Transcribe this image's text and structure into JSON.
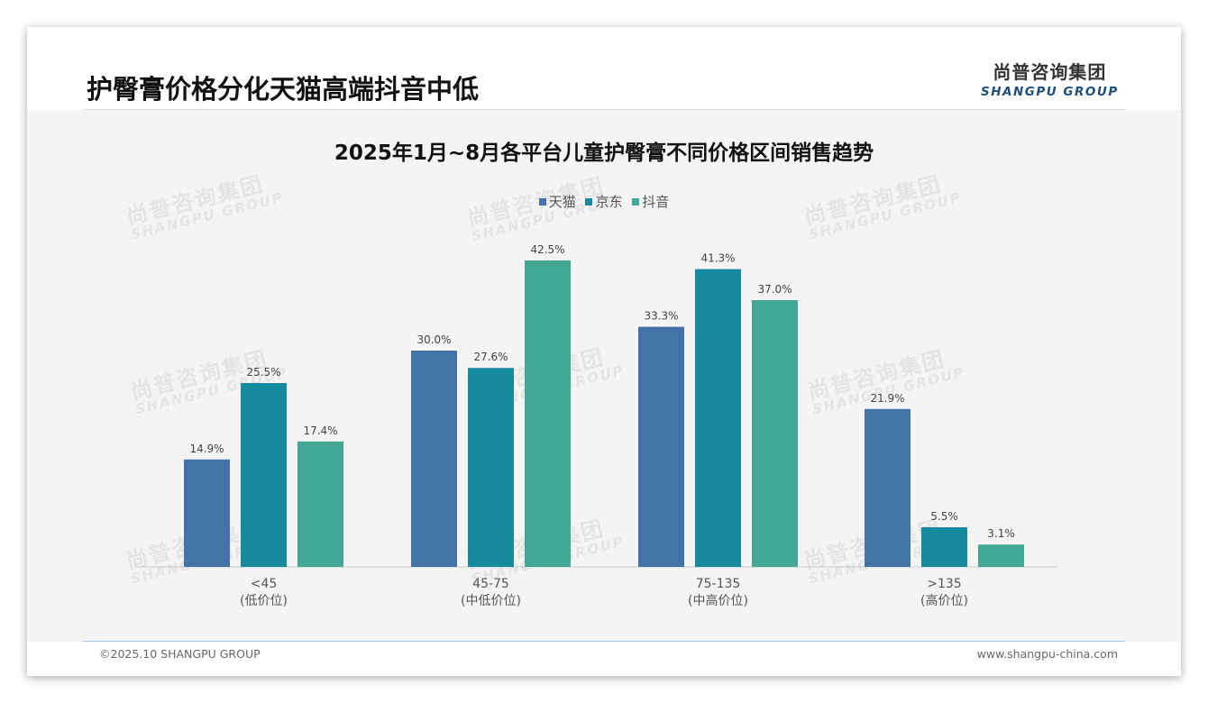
{
  "page": {
    "title": "护臀膏价格分化天猫高端抖音中低",
    "footer_left": "©2025.10 SHANGPU GROUP",
    "footer_right": "www.shangpu-china.com"
  },
  "logo": {
    "cn": "尚普咨询集团",
    "en": "SHANGPU GROUP"
  },
  "watermark": {
    "cn": "尚普咨询集团",
    "en": "SHANGPU GROUP"
  },
  "colors": {
    "tmall": "#4373a8",
    "jd": "#188aa0",
    "douyin": "#42a893",
    "axis": "#c8c8c8"
  },
  "chart_data": {
    "type": "bar",
    "title": "2025年1月~8月各平台儿童护臀膏不同价格区间销售趋势",
    "categories": [
      {
        "label": "<45",
        "sub": "(低价位)"
      },
      {
        "label": "45-75",
        "sub": "(中低价位)"
      },
      {
        "label": "75-135",
        "sub": "(中高价位)"
      },
      {
        "label": ">135",
        "sub": "(高价位)"
      }
    ],
    "series": [
      {
        "name": "天猫",
        "color_key": "tmall",
        "values": [
          14.9,
          30.0,
          33.3,
          21.9
        ],
        "labels": [
          "14.9%",
          "30.0%",
          "33.3%",
          "21.9%"
        ]
      },
      {
        "name": "京东",
        "color_key": "jd",
        "values": [
          25.5,
          27.6,
          41.3,
          5.5
        ],
        "labels": [
          "25.5%",
          "27.6%",
          "41.3%",
          "5.5%"
        ]
      },
      {
        "name": "抖音",
        "color_key": "douyin",
        "values": [
          17.4,
          42.5,
          37.0,
          3.1
        ],
        "labels": [
          "17.4%",
          "42.5%",
          "37.0%",
          "3.1%"
        ]
      }
    ],
    "unit": "%",
    "ylim": [
      0,
      50
    ],
    "legend_position": "top-center",
    "grid": false
  }
}
